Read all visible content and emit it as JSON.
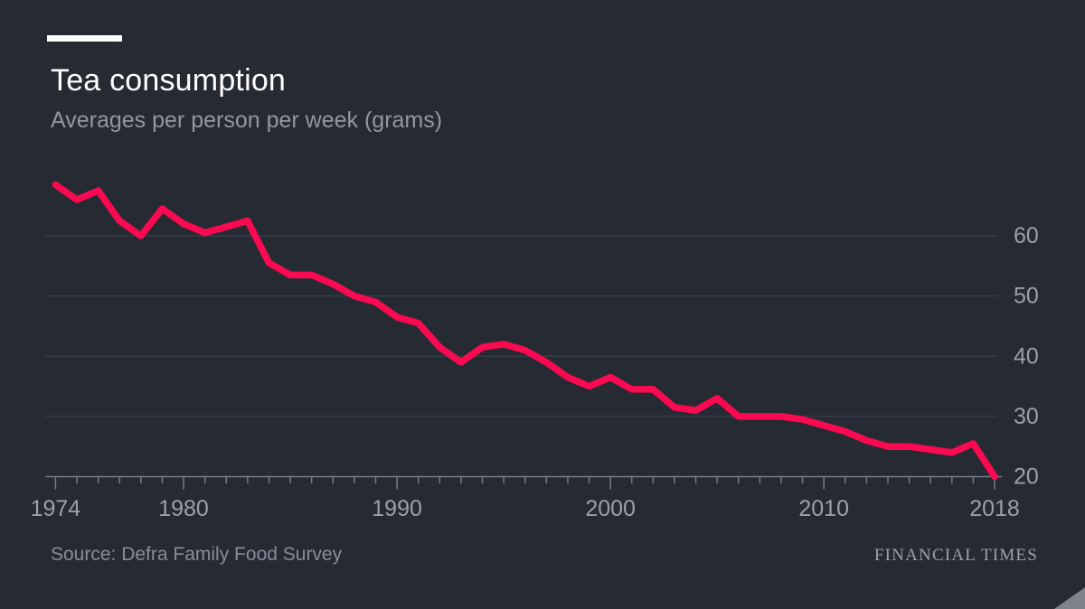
{
  "header": {
    "title": "Tea consumption",
    "subtitle": "Averages per person per week (grams)"
  },
  "footer": {
    "source": "Source: Defra Family Food Survey",
    "brand": "FINANCIAL TIMES"
  },
  "colors": {
    "background": "#262a33",
    "line": "#fa0a50",
    "gridline": "#3e4450",
    "axis": "#767c86",
    "tick_label": "#99a1ad",
    "title": "#ffffff",
    "subtitle": "#8f98a5"
  },
  "chart_data": {
    "type": "line",
    "title": "Tea consumption",
    "subtitle": "Averages per person per week (grams)",
    "series_name": "Tea consumption",
    "xlabel": "",
    "ylabel": "grams per person per week",
    "x": [
      1974,
      1975,
      1976,
      1977,
      1978,
      1979,
      1980,
      1981,
      1982,
      1983,
      1984,
      1985,
      1986,
      1987,
      1988,
      1989,
      1990,
      1991,
      1992,
      1993,
      1994,
      1995,
      1996,
      1997,
      1998,
      1999,
      2000,
      2001,
      2002,
      2003,
      2004,
      2005,
      2006,
      2007,
      2008,
      2009,
      2010,
      2011,
      2012,
      2013,
      2014,
      2015,
      2016,
      2017,
      2018
    ],
    "values": [
      68.5,
      66,
      67.5,
      62.5,
      60,
      64.5,
      62,
      60.5,
      61.5,
      62.5,
      55.5,
      53.5,
      53.5,
      52,
      50,
      49,
      46.5,
      45.5,
      41.5,
      39,
      41.5,
      42,
      41,
      39,
      36.5,
      35,
      36.5,
      34.5,
      34.5,
      31.5,
      31,
      33,
      30,
      30,
      30,
      29.5,
      28.5,
      27.5,
      26,
      25,
      25,
      24.5,
      24,
      25.5,
      20
    ],
    "xlim": [
      1974,
      2018
    ],
    "ylim": [
      20,
      70
    ],
    "y_ticks": [
      20,
      30,
      40,
      50,
      60
    ],
    "x_tick_labels": [
      1974,
      1980,
      1990,
      2000,
      2010,
      2018
    ],
    "grid": "horizontal",
    "legend": "none",
    "line_color": "#fa0a50",
    "background": "#262a33"
  }
}
